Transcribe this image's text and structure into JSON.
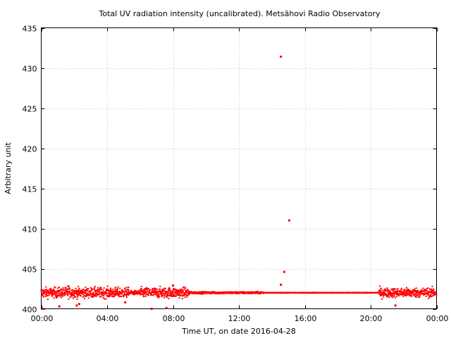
{
  "chart_data": {
    "type": "scatter",
    "title": "Total UV radiation intensity (uncalibrated). Metsähovi Radio Observatory",
    "xlabel": "Time UT, on date 2016-04-28",
    "ylabel": "Arbitrary unit",
    "x_unit": "hours UT",
    "xlim": [
      0,
      24
    ],
    "ylim": [
      400,
      435
    ],
    "x_ticks": [
      {
        "value": 0,
        "label": "00:00"
      },
      {
        "value": 4,
        "label": "04:00"
      },
      {
        "value": 8,
        "label": "08:00"
      },
      {
        "value": 12,
        "label": "12:00"
      },
      {
        "value": 16,
        "label": "16:00"
      },
      {
        "value": 20,
        "label": "20:00"
      },
      {
        "value": 24,
        "label": "00:00"
      }
    ],
    "y_ticks": [
      400,
      405,
      410,
      415,
      420,
      425,
      430,
      435
    ],
    "grid": true,
    "legend": "none",
    "point_color": "#ff0000",
    "series": [
      {
        "baseline": 402.0,
        "noise_segments": [
          {
            "x_start": 0.0,
            "x_end": 5.3,
            "spread": 0.6
          },
          {
            "x_start": 5.3,
            "x_end": 6.0,
            "spread": 0.25
          },
          {
            "x_start": 6.0,
            "x_end": 9.0,
            "spread": 0.6
          },
          {
            "x_start": 9.0,
            "x_end": 13.5,
            "spread": 0.12
          },
          {
            "x_start": 13.5,
            "x_end": 20.5,
            "spread": 0.03
          },
          {
            "x_start": 20.5,
            "x_end": 24.0,
            "spread": 0.55
          }
        ],
        "outliers": [
          {
            "x": 14.55,
            "y": 431.4
          },
          {
            "x": 15.05,
            "y": 411.0
          },
          {
            "x": 14.75,
            "y": 404.6
          },
          {
            "x": 14.55,
            "y": 403.0
          },
          {
            "x": 0.1,
            "y": 400.0
          },
          {
            "x": 1.1,
            "y": 400.3
          },
          {
            "x": 2.15,
            "y": 400.4
          },
          {
            "x": 2.3,
            "y": 400.6
          },
          {
            "x": 6.7,
            "y": 400.0
          },
          {
            "x": 7.6,
            "y": 400.1
          },
          {
            "x": 21.5,
            "y": 400.4
          },
          {
            "x": 5.1,
            "y": 400.8
          },
          {
            "x": 1.65,
            "y": 402.8
          },
          {
            "x": 8.0,
            "y": 402.9
          }
        ]
      }
    ]
  }
}
